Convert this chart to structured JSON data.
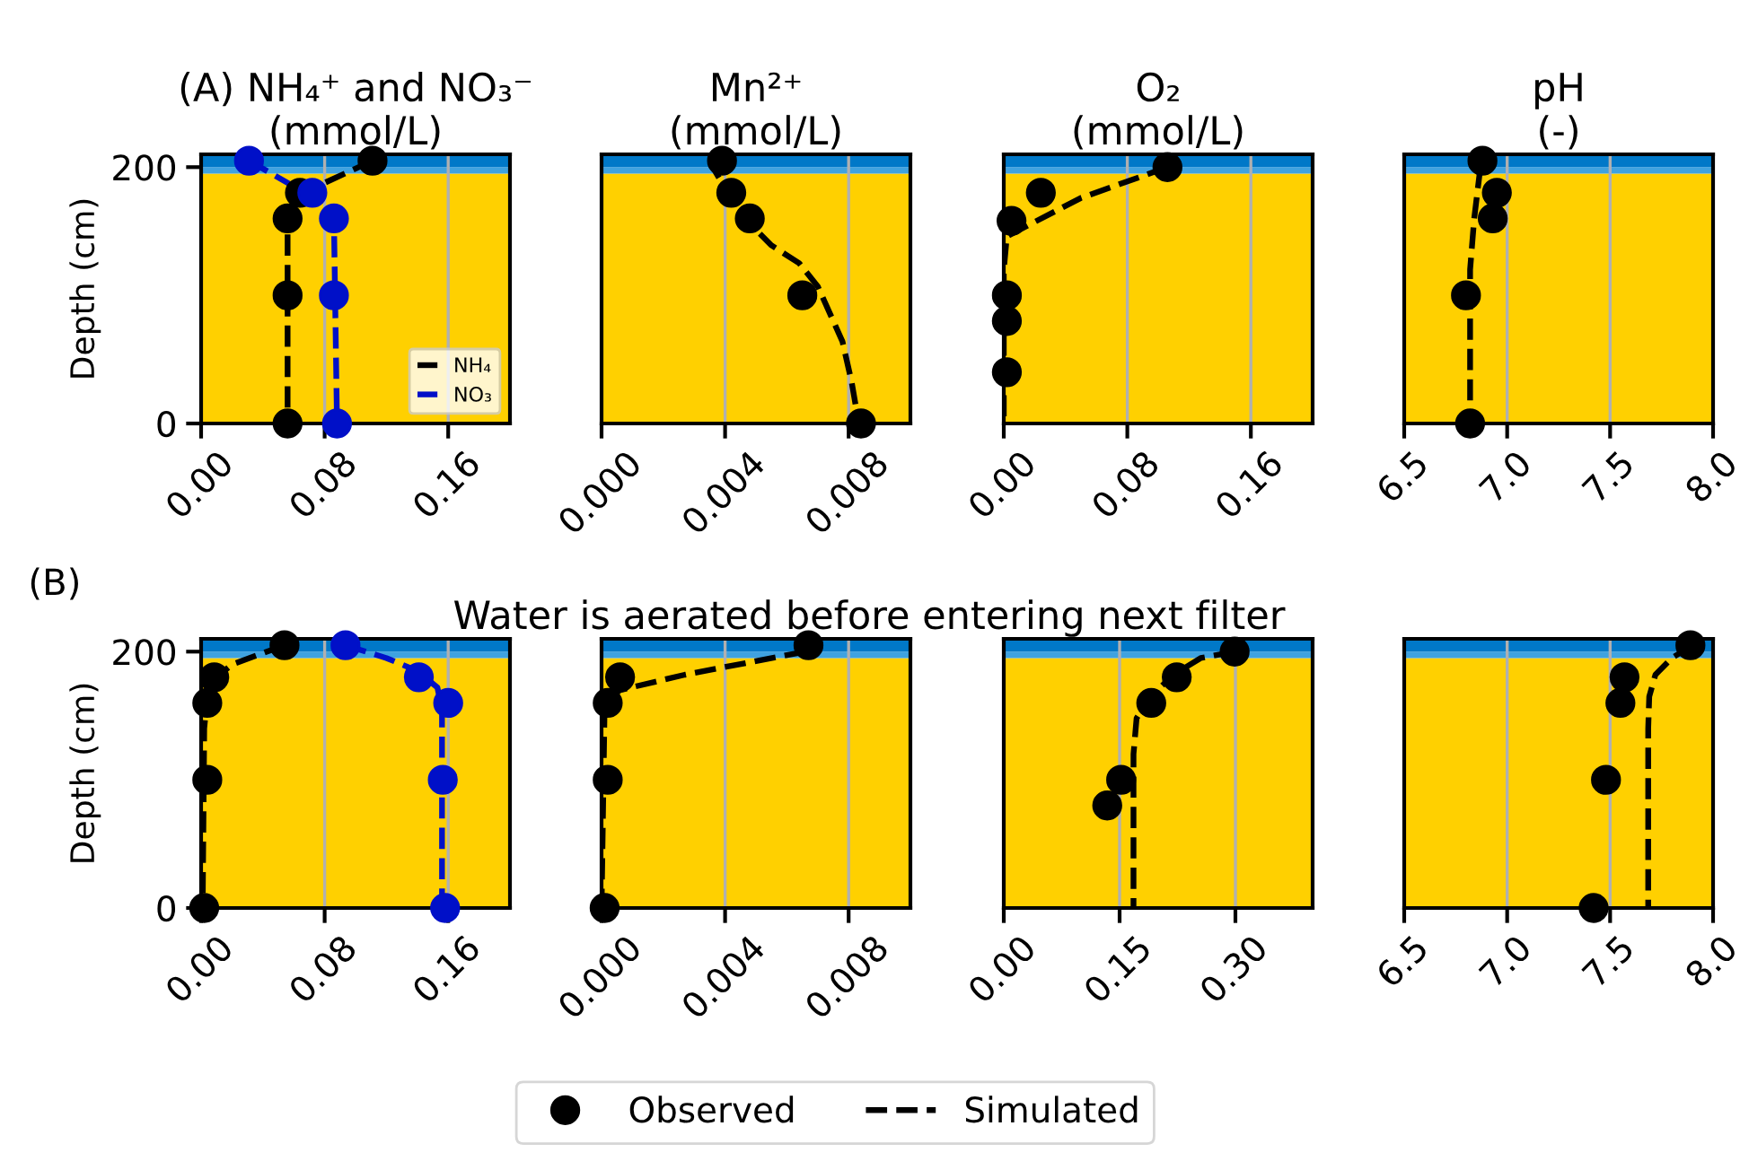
{
  "chart_data": [
    {
      "type": "line",
      "title": "(A) NH₄⁺ and NO₃⁻\n(mmol/L)",
      "ylabel": "Depth (cm)",
      "xlim": [
        0,
        0.2
      ],
      "xticks": [
        {
          "value": 0,
          "label": "0.00"
        },
        {
          "value": 0.08,
          "label": "0.08"
        },
        {
          "value": 0.16,
          "label": "0.16"
        }
      ],
      "ylim": [
        0,
        210
      ],
      "yticks": [
        0,
        200
      ],
      "grid": "x",
      "legend": "bottom right",
      "bands": [
        {
          "axis": "y",
          "from": 0,
          "to": 195,
          "color": "#ffd000"
        },
        {
          "axis": "y",
          "from": 195,
          "to": 200,
          "color": "#3fa2e0"
        },
        {
          "axis": "y",
          "from": 200,
          "to": 210,
          "color": "#0078c8"
        }
      ],
      "series": [
        {
          "name": "NH₄",
          "color": "#000000",
          "line_style": "dashed",
          "x": [
            0.111,
            0.075,
            0.06,
            0.056,
            0.056
          ],
          "values": [
            205,
            185,
            170,
            160,
            0
          ]
        },
        {
          "name": "NO₃",
          "color": "#0010c8",
          "line_style": "dashed",
          "x": [
            0.031,
            0.06,
            0.08,
            0.086,
            0.088
          ],
          "values": [
            205,
            185,
            170,
            160,
            0
          ]
        },
        {
          "type": "scatter",
          "color": "#000000",
          "marker": "circle",
          "x": [
            0.111,
            0.064,
            0.056,
            0.056,
            0.056
          ],
          "values": [
            205,
            180,
            160,
            100,
            0
          ]
        },
        {
          "type": "scatter",
          "color": "#0010c8",
          "marker": "circle",
          "x": [
            0.031,
            0.072,
            0.086,
            0.086,
            0.088
          ],
          "values": [
            205,
            180,
            160,
            100,
            0
          ]
        }
      ]
    },
    {
      "type": "line",
      "title": "Mn²⁺\n(mmol/L)",
      "xlim": [
        0,
        0.01
      ],
      "xticks": [
        {
          "value": 0,
          "label": "0.000"
        },
        {
          "value": 0.004,
          "label": "0.004"
        },
        {
          "value": 0.008,
          "label": "0.008"
        }
      ],
      "ylim": [
        0,
        210
      ],
      "yticks": [
        0,
        200
      ],
      "grid": "x",
      "tick_labels": "x",
      "bands": [
        {
          "axis": "y",
          "from": 0,
          "to": 195,
          "color": "#ffd000"
        },
        {
          "axis": "y",
          "from": 195,
          "to": 200,
          "color": "#3fa2e0"
        },
        {
          "axis": "y",
          "from": 200,
          "to": 210,
          "color": "#0078c8"
        }
      ],
      "series": [
        {
          "color": "#000000",
          "line_style": "dashed",
          "x": [
            0.0038,
            0.0036,
            0.0045,
            0.0055,
            0.0064,
            0.007,
            0.0078,
            0.0081,
            0.0083
          ],
          "values": [
            205,
            200,
            163,
            139,
            125,
            107,
            64,
            32,
            4
          ]
        },
        {
          "type": "scatter",
          "color": "#000000",
          "marker": "circle",
          "x": [
            0.0039,
            0.0042,
            0.0048,
            0.0065,
            0.0084
          ],
          "values": [
            205,
            180,
            160,
            100,
            0
          ]
        }
      ]
    },
    {
      "type": "line",
      "title": "O₂\n(mmol/L)",
      "xlim": [
        0,
        0.2
      ],
      "xticks": [
        {
          "value": 0,
          "label": "0.00"
        },
        {
          "value": 0.08,
          "label": "0.08"
        },
        {
          "value": 0.16,
          "label": "0.16"
        }
      ],
      "ylim": [
        0,
        210
      ],
      "yticks": [
        0,
        200
      ],
      "grid": "x",
      "tick_labels": "x",
      "bands": [
        {
          "axis": "y",
          "from": 0,
          "to": 195,
          "color": "#ffd000"
        },
        {
          "axis": "y",
          "from": 195,
          "to": 200,
          "color": "#3fa2e0"
        },
        {
          "axis": "y",
          "from": 200,
          "to": 210,
          "color": "#0078c8"
        }
      ],
      "series": [
        {
          "color": "#000000",
          "line_style": "dashed",
          "x": [
            0.106,
            0.05,
            0.002,
            0,
            0
          ],
          "values": [
            200,
            176,
            146,
            120,
            0
          ]
        },
        {
          "type": "scatter",
          "color": "#000000",
          "marker": "circle",
          "x": [
            0.106,
            0.024,
            0.005,
            0.002,
            0.002,
            0.002
          ],
          "values": [
            200,
            180,
            158,
            100,
            80,
            40
          ]
        }
      ]
    },
    {
      "type": "line",
      "title": "pH\n(-)",
      "xlim": [
        6.5,
        8.0
      ],
      "xticks": [
        {
          "value": 6.5,
          "label": "6.5"
        },
        {
          "value": 7,
          "label": "7.0"
        },
        {
          "value": 7.5,
          "label": "7.5"
        },
        {
          "value": 8,
          "label": "8.0"
        }
      ],
      "ylim": [
        0,
        210
      ],
      "yticks": [
        0,
        200
      ],
      "grid": "x",
      "tick_labels": "x",
      "bands": [
        {
          "axis": "y",
          "from": 0,
          "to": 195,
          "color": "#ffd000"
        },
        {
          "axis": "y",
          "from": 195,
          "to": 200,
          "color": "#3fa2e0"
        },
        {
          "axis": "y",
          "from": 200,
          "to": 210,
          "color": "#0078c8"
        }
      ],
      "series": [
        {
          "color": "#000000",
          "line_style": "dashed",
          "x": [
            6.87,
            6.84,
            6.82,
            6.82
          ],
          "values": [
            200,
            160,
            120,
            0
          ]
        },
        {
          "type": "scatter",
          "color": "#000000",
          "marker": "circle",
          "x": [
            6.88,
            6.95,
            6.93,
            6.8,
            6.82
          ],
          "values": [
            205,
            180,
            160,
            100,
            0
          ]
        }
      ]
    },
    {
      "type": "line",
      "annotations": [
        "(B)"
      ],
      "ylabel": "Depth (cm)",
      "xlim": [
        0,
        0.2
      ],
      "xticks": [
        {
          "value": 0,
          "label": "0.00"
        },
        {
          "value": 0.08,
          "label": "0.08"
        },
        {
          "value": 0.16,
          "label": "0.16"
        }
      ],
      "ylim": [
        0,
        210
      ],
      "yticks": [
        0,
        200
      ],
      "grid": "x",
      "bands": [
        {
          "axis": "y",
          "from": 0,
          "to": 195,
          "color": "#ffd000"
        },
        {
          "axis": "y",
          "from": 195,
          "to": 200,
          "color": "#3fa2e0"
        },
        {
          "axis": "y",
          "from": 200,
          "to": 210,
          "color": "#0078c8"
        }
      ],
      "series": [
        {
          "color": "#000000",
          "line_style": "dashed",
          "x": [
            0.054,
            0.02,
            0.008,
            0.004,
            0.002,
            0.001
          ],
          "values": [
            205,
            190,
            178,
            165,
            140,
            0
          ]
        },
        {
          "color": "#0010c8",
          "line_style": "dashed",
          "x": [
            0.0935,
            0.12,
            0.14,
            0.153,
            0.156,
            0.156
          ],
          "values": [
            205,
            195,
            185,
            172,
            155,
            0
          ]
        },
        {
          "type": "scatter",
          "color": "#000000",
          "marker": "circle",
          "x": [
            0.054,
            0.0085,
            0.004,
            0.004,
            0.002
          ],
          "values": [
            205,
            180,
            160,
            100,
            0
          ]
        },
        {
          "type": "scatter",
          "color": "#0010c8",
          "marker": "circle",
          "x": [
            0.0935,
            0.141,
            0.16,
            0.1565,
            0.158
          ],
          "values": [
            205,
            180,
            160,
            100,
            0
          ]
        }
      ]
    },
    {
      "type": "line",
      "title": "Water is aerated before entering next filter",
      "xlim": [
        0,
        0.01
      ],
      "xticks": [
        {
          "value": 0,
          "label": "0.000"
        },
        {
          "value": 0.004,
          "label": "0.004"
        },
        {
          "value": 0.008,
          "label": "0.008"
        }
      ],
      "ylim": [
        0,
        210
      ],
      "yticks": [
        0,
        200
      ],
      "grid": "x",
      "tick_labels": "x",
      "bands": [
        {
          "axis": "y",
          "from": 0,
          "to": 195,
          "color": "#ffd000"
        },
        {
          "axis": "y",
          "from": 195,
          "to": 200,
          "color": "#3fa2e0"
        },
        {
          "axis": "y",
          "from": 200,
          "to": 210,
          "color": "#0078c8"
        }
      ],
      "series": [
        {
          "color": "#000000",
          "line_style": "dashed",
          "x": [
            0.0066,
            0.0027,
            0.0006,
            0.0001,
            0
          ],
          "values": [
            200,
            182,
            170,
            160,
            0
          ]
        },
        {
          "type": "scatter",
          "color": "#000000",
          "marker": "circle",
          "x": [
            0.0067,
            0.0006,
            0.0002,
            0.0002,
            0.0001
          ],
          "values": [
            205,
            180,
            160,
            100,
            0
          ]
        }
      ]
    },
    {
      "type": "line",
      "xlim": [
        0,
        0.4
      ],
      "xticks": [
        {
          "value": 0,
          "label": "0.00"
        },
        {
          "value": 0.15,
          "label": "0.15"
        },
        {
          "value": 0.3,
          "label": "0.30"
        }
      ],
      "ylim": [
        0,
        210
      ],
      "yticks": [
        0,
        200
      ],
      "grid": "x",
      "tick_labels": "x",
      "bands": [
        {
          "axis": "y",
          "from": 0,
          "to": 195,
          "color": "#ffd000"
        },
        {
          "axis": "y",
          "from": 195,
          "to": 200,
          "color": "#3fa2e0"
        },
        {
          "axis": "y",
          "from": 200,
          "to": 210,
          "color": "#0078c8"
        }
      ],
      "series": [
        {
          "color": "#000000",
          "line_style": "dashed",
          "x": [
            0.299,
            0.255,
            0.22,
            0.19,
            0.172,
            0.168,
            0.168
          ],
          "values": [
            200,
            195,
            182,
            165,
            148,
            120,
            0
          ]
        },
        {
          "type": "scatter",
          "color": "#000000",
          "marker": "circle",
          "x": [
            0.299,
            0.224,
            0.191,
            0.152,
            0.134
          ],
          "values": [
            200,
            180,
            160,
            100,
            80
          ]
        }
      ]
    },
    {
      "type": "line",
      "xlim": [
        6.5,
        8.0
      ],
      "xticks": [
        {
          "value": 6.5,
          "label": "6.5"
        },
        {
          "value": 7,
          "label": "7.0"
        },
        {
          "value": 7.5,
          "label": "7.5"
        },
        {
          "value": 8,
          "label": "8.0"
        }
      ],
      "ylim": [
        0,
        210
      ],
      "yticks": [
        0,
        200
      ],
      "grid": "x",
      "tick_labels": "x",
      "legend": "bottom",
      "bands": [
        {
          "axis": "y",
          "from": 0,
          "to": 195,
          "color": "#ffd000"
        },
        {
          "axis": "y",
          "from": 195,
          "to": 200,
          "color": "#3fa2e0"
        },
        {
          "axis": "y",
          "from": 200,
          "to": 210,
          "color": "#0078c8"
        }
      ],
      "series": [
        {
          "type": "scatter",
          "name": "Observed",
          "color": "#000000",
          "marker": "circle",
          "x": [
            7.89,
            7.57,
            7.55,
            7.48,
            7.42
          ],
          "values": [
            205,
            180,
            160,
            100,
            0
          ]
        },
        {
          "name": "Simulated",
          "color": "#000000",
          "line_style": "dashed",
          "x": [
            7.9,
            7.8,
            7.72,
            7.69,
            7.685,
            7.685
          ],
          "values": [
            205,
            195,
            182,
            165,
            140,
            0
          ]
        }
      ]
    }
  ]
}
